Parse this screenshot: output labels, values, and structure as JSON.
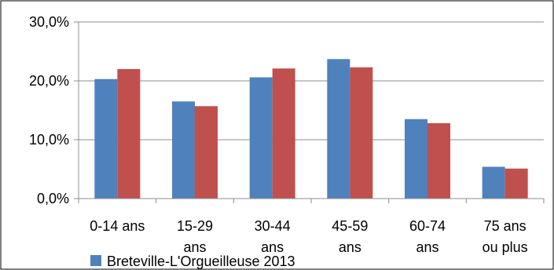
{
  "chart_data": {
    "type": "bar",
    "categories": [
      [
        "0-14 ans"
      ],
      [
        "15-29",
        "ans"
      ],
      [
        "30-44",
        "ans"
      ],
      [
        "45-59",
        "ans"
      ],
      [
        "60-74",
        "ans"
      ],
      [
        "75 ans",
        "ou plus"
      ]
    ],
    "series": [
      {
        "name": "Breteville-L'Orgueilleuse 2013",
        "color": "#4f81bd",
        "values": [
          20.3,
          16.5,
          20.6,
          23.7,
          13.5,
          5.4
        ]
      },
      {
        "color": "#c0504d",
        "values": [
          22.0,
          15.7,
          22.1,
          22.3,
          12.8,
          5.1
        ]
      }
    ],
    "y_ticks": [
      "0,0%",
      "10,0%",
      "20,0%",
      "30,0%"
    ],
    "ylim": [
      0,
      30
    ],
    "grid": true,
    "legend_position": "bottom",
    "title": "",
    "xlabel": "",
    "ylabel": ""
  }
}
